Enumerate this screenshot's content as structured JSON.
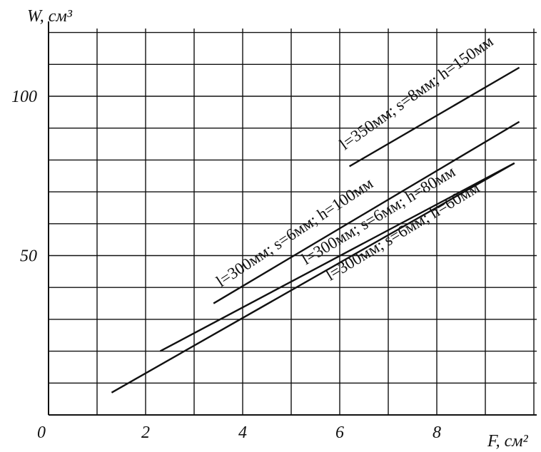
{
  "chart_data": {
    "type": "line",
    "xlabel": "F, см²",
    "ylabel": "W, см³",
    "xlim": [
      0,
      10
    ],
    "ylim": [
      0,
      120
    ],
    "x_ticks": [
      {
        "value": 0,
        "label": "0"
      },
      {
        "value": 2,
        "label": "2"
      },
      {
        "value": 4,
        "label": "4"
      },
      {
        "value": 6,
        "label": "6"
      },
      {
        "value": 8,
        "label": "8"
      }
    ],
    "y_ticks": [
      {
        "value": 50,
        "label": "50"
      },
      {
        "value": 100,
        "label": "100"
      }
    ],
    "grid": true,
    "series": [
      {
        "name": "l=350мм; s=8мм; h=150мм",
        "x": [
          6.2,
          9.7
        ],
        "y": [
          78,
          109
        ]
      },
      {
        "name": "l=300мм; s=6мм; h=100мм",
        "x": [
          3.4,
          9.7
        ],
        "y": [
          35,
          92
        ]
      },
      {
        "name": "l=300мм; s=6мм; h=80мм",
        "x": [
          2.3,
          9.6
        ],
        "y": [
          20,
          79
        ]
      },
      {
        "name": "l=300мм; s=6мм; h=60мм",
        "x": [
          1.3,
          9.6
        ],
        "y": [
          7,
          79
        ]
      }
    ],
    "annotations": [
      {
        "text": "l=350мм; s=8мм; h=150мм",
        "series": 0
      },
      {
        "text": "l=300мм; s=6мм; h=100мм",
        "series": 1
      },
      {
        "text": "l=300мм; s=6мм; h=80мм",
        "series": 2
      },
      {
        "text": "l=300мм; s=6мм; h=60мм",
        "series": 3
      }
    ]
  }
}
